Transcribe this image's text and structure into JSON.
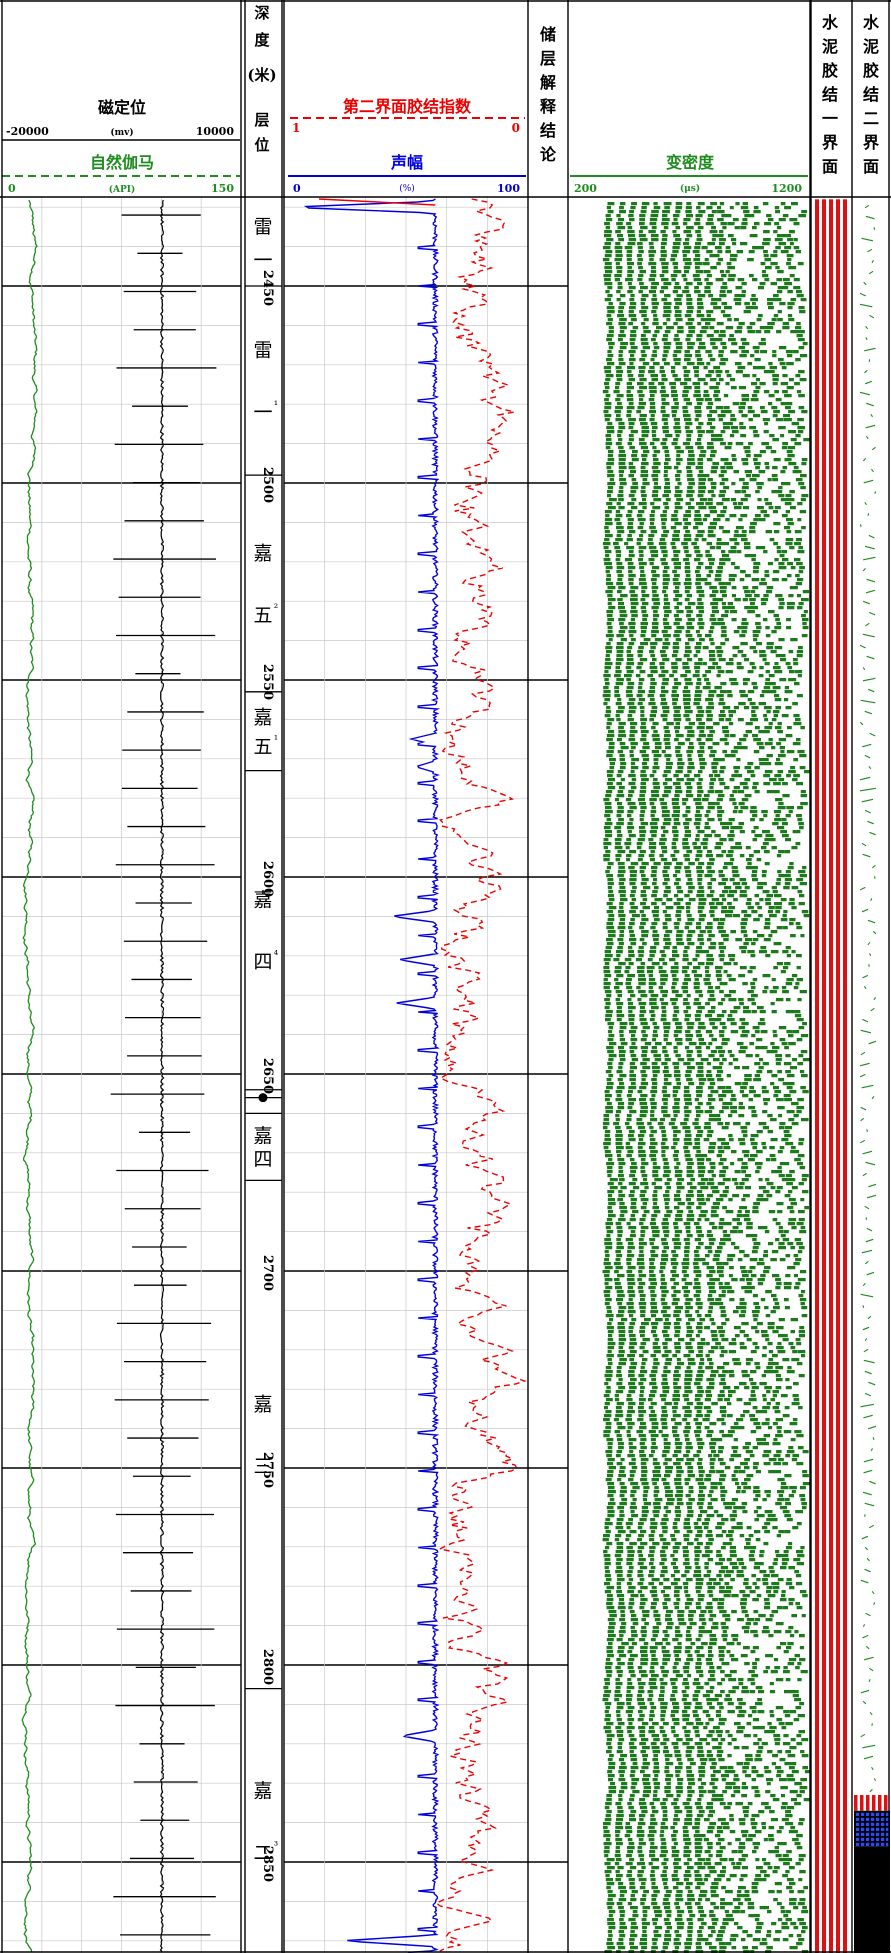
{
  "header": {
    "ccl": {
      "title": "磁定位",
      "min": "-20000",
      "unit": "(mv)",
      "max": "10000"
    },
    "gr": {
      "title": "自然伽马",
      "min": "0",
      "unit": "(API)",
      "max": "150"
    },
    "depth": {
      "title_chars": [
        "深",
        "度",
        "(米)",
        "层",
        "位"
      ]
    },
    "bi": {
      "title": "第二界面胶结指数",
      "min": "1",
      "max": "0"
    },
    "amp": {
      "title": "声幅",
      "min": "0",
      "unit": "(%)",
      "max": "100"
    },
    "interp": {
      "title_chars": [
        "储",
        "层",
        "解",
        "释",
        "结",
        "论"
      ]
    },
    "vdl": {
      "title": "变密度",
      "min": "200",
      "unit": "(μs)",
      "max": "1200"
    },
    "bond1": {
      "title_chars": [
        "水",
        "泥",
        "胶",
        "结",
        "一",
        "界",
        "面"
      ]
    },
    "bond2": {
      "title_chars": [
        "水",
        "泥",
        "胶",
        "结",
        "二",
        "界",
        "面"
      ]
    }
  },
  "colors": {
    "gr_green": "#1e8c1e",
    "ccl_black": "#000000",
    "amp_blue": "#0000dd",
    "bi_red": "#ee0000",
    "vdl_green": "#1c7a1c",
    "bond_red": "#dd1111",
    "dot_blue": "#2a4cff",
    "grid": "#c8c8c8"
  },
  "chart_data": {
    "type": "well_log",
    "depth_range": [
      2428,
      2875
    ],
    "depth_labels": [
      2450,
      2500,
      2550,
      2600,
      2650,
      2700,
      2750,
      2800,
      2850
    ],
    "formations": [
      {
        "top": 2428,
        "bottom": 2450,
        "label": "雷一"
      },
      {
        "top": 2450,
        "bottom": 2498,
        "label": "雷一¹"
      },
      {
        "top": 2498,
        "bottom": 2553,
        "label": "嘉五²"
      },
      {
        "top": 2553,
        "bottom": 2573,
        "label": "嘉五¹"
      },
      {
        "top": 2573,
        "bottom": 2654,
        "label": "嘉四⁴"
      },
      {
        "top": 2654,
        "bottom": 2660,
        "label": ""
      },
      {
        "top": 2660,
        "bottom": 2677,
        "label": "嘉四"
      },
      {
        "top": 2677,
        "bottom": 2806,
        "label": "嘉三"
      },
      {
        "top": 2806,
        "bottom": 2875,
        "label": "嘉二³"
      }
    ],
    "cement_bond_interface_1": [
      {
        "top": 2428,
        "bottom": 2875,
        "rating": "good"
      }
    ],
    "cement_bond_interface_2": [
      {
        "top": 2428,
        "bottom": 2833,
        "rating": "not_evaluated"
      },
      {
        "top": 2833,
        "bottom": 2837,
        "rating": "good"
      },
      {
        "top": 2837,
        "bottom": 2846,
        "rating": "medium"
      },
      {
        "top": 2846,
        "bottom": 2875,
        "rating": "poor"
      }
    ],
    "amplitude_spikes": [
      {
        "depth": 2430,
        "value": 2
      },
      {
        "depth": 2547,
        "value": 70
      },
      {
        "depth": 2565,
        "value": 52
      },
      {
        "depth": 2572,
        "value": 54
      },
      {
        "depth": 2610,
        "value": 44
      },
      {
        "depth": 2621,
        "value": 47
      },
      {
        "depth": 2632,
        "value": 46
      },
      {
        "depth": 2640,
        "value": 62
      },
      {
        "depth": 2818,
        "value": 48
      },
      {
        "depth": 2870,
        "value": 24
      },
      {
        "depth": 2874,
        "value": 26
      }
    ]
  }
}
